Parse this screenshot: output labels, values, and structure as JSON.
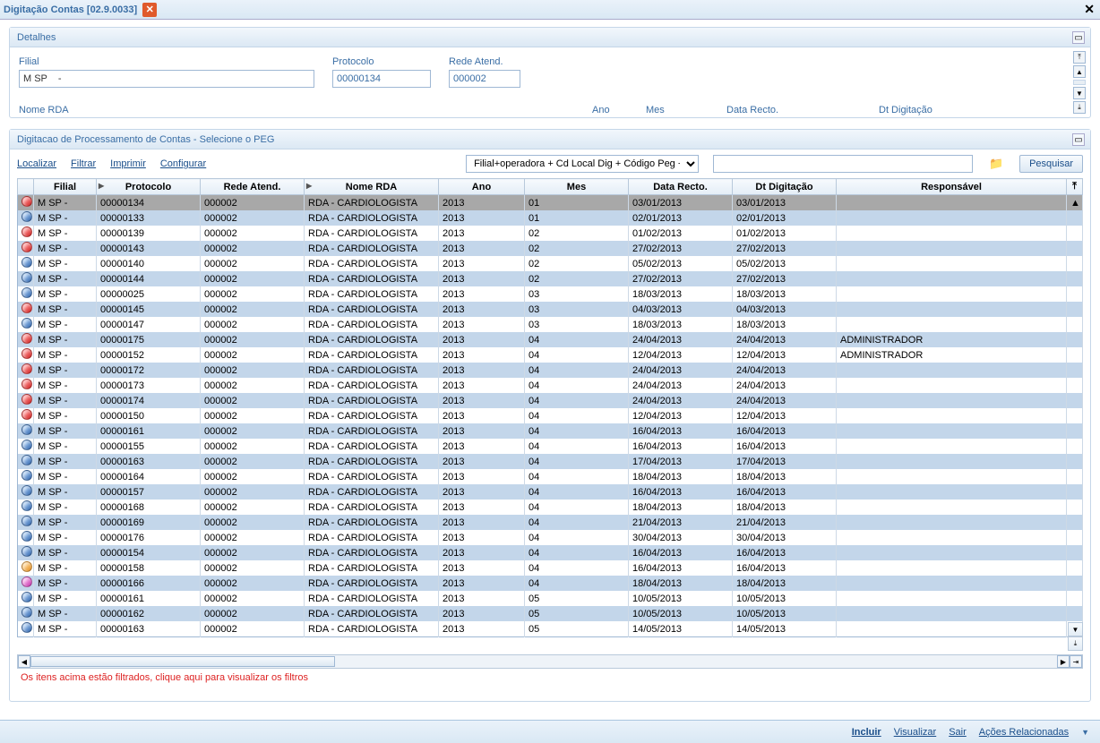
{
  "window": {
    "title": "Digitação Contas [02.9.0033]"
  },
  "panels": {
    "detalhes": {
      "title": "Detalhes"
    },
    "peg": {
      "title": "Digitacao de Processamento de Contas - Selecione o PEG"
    }
  },
  "fields": {
    "filial": {
      "label": "Filial",
      "value": "M SP    -"
    },
    "protocolo": {
      "label": "Protocolo",
      "value": "00000134"
    },
    "rede": {
      "label": "Rede Atend.",
      "value": "000002"
    },
    "truncated": {
      "nomerda": "Nome RDA",
      "ano": "Ano",
      "mes": "Mes",
      "datarecto": "Data Recto.",
      "dtdig": "Dt Digitação"
    }
  },
  "toolbar": {
    "localizar": "Localizar",
    "filtrar": "Filtrar",
    "imprimir": "Imprimir",
    "configurar": "Configurar",
    "combo_value": "Filial+operadora + Cd Local Dig + Código Peg + Fa",
    "search_label": "Pesquisar"
  },
  "columns": {
    "filial": "Filial",
    "protocolo": "Protocolo",
    "rede": "Rede Atend.",
    "nome": "Nome RDA",
    "ano": "Ano",
    "mes": "Mes",
    "datarecto": "Data Recto.",
    "dtdig": "Dt Digitação",
    "resp": "Responsável"
  },
  "status_colors": {
    "red": "#cc1f1f",
    "blue": "#2b5fa8",
    "orange": "#e08a1f",
    "magenta": "#c22fa8"
  },
  "rows": [
    {
      "status": "red",
      "filial": "M SP    -",
      "protocolo": "00000134",
      "rede": "000002",
      "nome": "RDA - CARDIOLOGISTA",
      "ano": "2013",
      "mes": "01",
      "datarecto": "03/01/2013",
      "dtdig": "03/01/2013",
      "resp": "",
      "sel": true,
      "alt": true
    },
    {
      "status": "blue",
      "filial": "M SP    -",
      "protocolo": "00000133",
      "rede": "000002",
      "nome": "RDA - CARDIOLOGISTA",
      "ano": "2013",
      "mes": "01",
      "datarecto": "02/01/2013",
      "dtdig": "02/01/2013",
      "resp": "",
      "alt": true
    },
    {
      "status": "red",
      "filial": "M SP    -",
      "protocolo": "00000139",
      "rede": "000002",
      "nome": "RDA - CARDIOLOGISTA",
      "ano": "2013",
      "mes": "02",
      "datarecto": "01/02/2013",
      "dtdig": "01/02/2013",
      "resp": ""
    },
    {
      "status": "red",
      "filial": "M SP    -",
      "protocolo": "00000143",
      "rede": "000002",
      "nome": "RDA - CARDIOLOGISTA",
      "ano": "2013",
      "mes": "02",
      "datarecto": "27/02/2013",
      "dtdig": "27/02/2013",
      "resp": "",
      "alt": true
    },
    {
      "status": "blue",
      "filial": "M SP    -",
      "protocolo": "00000140",
      "rede": "000002",
      "nome": "RDA - CARDIOLOGISTA",
      "ano": "2013",
      "mes": "02",
      "datarecto": "05/02/2013",
      "dtdig": "05/02/2013",
      "resp": ""
    },
    {
      "status": "blue",
      "filial": "M SP    -",
      "protocolo": "00000144",
      "rede": "000002",
      "nome": "RDA - CARDIOLOGISTA",
      "ano": "2013",
      "mes": "02",
      "datarecto": "27/02/2013",
      "dtdig": "27/02/2013",
      "resp": "",
      "alt": true
    },
    {
      "status": "blue",
      "filial": "M SP    -",
      "protocolo": "00000025",
      "rede": "000002",
      "nome": "RDA - CARDIOLOGISTA",
      "ano": "2013",
      "mes": "03",
      "datarecto": "18/03/2013",
      "dtdig": "18/03/2013",
      "resp": ""
    },
    {
      "status": "red",
      "filial": "M SP    -",
      "protocolo": "00000145",
      "rede": "000002",
      "nome": "RDA - CARDIOLOGISTA",
      "ano": "2013",
      "mes": "03",
      "datarecto": "04/03/2013",
      "dtdig": "04/03/2013",
      "resp": "",
      "alt": true
    },
    {
      "status": "blue",
      "filial": "M SP    -",
      "protocolo": "00000147",
      "rede": "000002",
      "nome": "RDA - CARDIOLOGISTA",
      "ano": "2013",
      "mes": "03",
      "datarecto": "18/03/2013",
      "dtdig": "18/03/2013",
      "resp": ""
    },
    {
      "status": "red",
      "filial": "M SP    -",
      "protocolo": "00000175",
      "rede": "000002",
      "nome": "RDA - CARDIOLOGISTA",
      "ano": "2013",
      "mes": "04",
      "datarecto": "24/04/2013",
      "dtdig": "24/04/2013",
      "resp": "ADMINISTRADOR",
      "alt": true
    },
    {
      "status": "red",
      "filial": "M SP    -",
      "protocolo": "00000152",
      "rede": "000002",
      "nome": "RDA - CARDIOLOGISTA",
      "ano": "2013",
      "mes": "04",
      "datarecto": "12/04/2013",
      "dtdig": "12/04/2013",
      "resp": "ADMINISTRADOR"
    },
    {
      "status": "red",
      "filial": "M SP    -",
      "protocolo": "00000172",
      "rede": "000002",
      "nome": "RDA - CARDIOLOGISTA",
      "ano": "2013",
      "mes": "04",
      "datarecto": "24/04/2013",
      "dtdig": "24/04/2013",
      "resp": "",
      "alt": true
    },
    {
      "status": "red",
      "filial": "M SP    -",
      "protocolo": "00000173",
      "rede": "000002",
      "nome": "RDA - CARDIOLOGISTA",
      "ano": "2013",
      "mes": "04",
      "datarecto": "24/04/2013",
      "dtdig": "24/04/2013",
      "resp": ""
    },
    {
      "status": "red",
      "filial": "M SP    -",
      "protocolo": "00000174",
      "rede": "000002",
      "nome": "RDA - CARDIOLOGISTA",
      "ano": "2013",
      "mes": "04",
      "datarecto": "24/04/2013",
      "dtdig": "24/04/2013",
      "resp": "",
      "alt": true
    },
    {
      "status": "red",
      "filial": "M SP    -",
      "protocolo": "00000150",
      "rede": "000002",
      "nome": "RDA - CARDIOLOGISTA",
      "ano": "2013",
      "mes": "04",
      "datarecto": "12/04/2013",
      "dtdig": "12/04/2013",
      "resp": ""
    },
    {
      "status": "blue",
      "filial": "M SP    -",
      "protocolo": "00000161",
      "rede": "000002",
      "nome": "RDA - CARDIOLOGISTA",
      "ano": "2013",
      "mes": "04",
      "datarecto": "16/04/2013",
      "dtdig": "16/04/2013",
      "resp": "",
      "alt": true
    },
    {
      "status": "blue",
      "filial": "M SP    -",
      "protocolo": "00000155",
      "rede": "000002",
      "nome": "RDA - CARDIOLOGISTA",
      "ano": "2013",
      "mes": "04",
      "datarecto": "16/04/2013",
      "dtdig": "16/04/2013",
      "resp": ""
    },
    {
      "status": "blue",
      "filial": "M SP    -",
      "protocolo": "00000163",
      "rede": "000002",
      "nome": "RDA - CARDIOLOGISTA",
      "ano": "2013",
      "mes": "04",
      "datarecto": "17/04/2013",
      "dtdig": "17/04/2013",
      "resp": "",
      "alt": true
    },
    {
      "status": "blue",
      "filial": "M SP    -",
      "protocolo": "00000164",
      "rede": "000002",
      "nome": "RDA - CARDIOLOGISTA",
      "ano": "2013",
      "mes": "04",
      "datarecto": "18/04/2013",
      "dtdig": "18/04/2013",
      "resp": ""
    },
    {
      "status": "blue",
      "filial": "M SP    -",
      "protocolo": "00000157",
      "rede": "000002",
      "nome": "RDA - CARDIOLOGISTA",
      "ano": "2013",
      "mes": "04",
      "datarecto": "16/04/2013",
      "dtdig": "16/04/2013",
      "resp": "",
      "alt": true
    },
    {
      "status": "blue",
      "filial": "M SP    -",
      "protocolo": "00000168",
      "rede": "000002",
      "nome": "RDA - CARDIOLOGISTA",
      "ano": "2013",
      "mes": "04",
      "datarecto": "18/04/2013",
      "dtdig": "18/04/2013",
      "resp": ""
    },
    {
      "status": "blue",
      "filial": "M SP    -",
      "protocolo": "00000169",
      "rede": "000002",
      "nome": "RDA - CARDIOLOGISTA",
      "ano": "2013",
      "mes": "04",
      "datarecto": "21/04/2013",
      "dtdig": "21/04/2013",
      "resp": "",
      "alt": true
    },
    {
      "status": "blue",
      "filial": "M SP    -",
      "protocolo": "00000176",
      "rede": "000002",
      "nome": "RDA - CARDIOLOGISTA",
      "ano": "2013",
      "mes": "04",
      "datarecto": "30/04/2013",
      "dtdig": "30/04/2013",
      "resp": ""
    },
    {
      "status": "blue",
      "filial": "M SP    -",
      "protocolo": "00000154",
      "rede": "000002",
      "nome": "RDA - CARDIOLOGISTA",
      "ano": "2013",
      "mes": "04",
      "datarecto": "16/04/2013",
      "dtdig": "16/04/2013",
      "resp": "",
      "alt": true
    },
    {
      "status": "orange",
      "filial": "M SP    -",
      "protocolo": "00000158",
      "rede": "000002",
      "nome": "RDA - CARDIOLOGISTA",
      "ano": "2013",
      "mes": "04",
      "datarecto": "16/04/2013",
      "dtdig": "16/04/2013",
      "resp": ""
    },
    {
      "status": "magenta",
      "filial": "M SP    -",
      "protocolo": "00000166",
      "rede": "000002",
      "nome": "RDA - CARDIOLOGISTA",
      "ano": "2013",
      "mes": "04",
      "datarecto": "18/04/2013",
      "dtdig": "18/04/2013",
      "resp": "",
      "alt": true
    },
    {
      "status": "blue",
      "filial": "M SP    -",
      "protocolo": "00000161",
      "rede": "000002",
      "nome": "RDA - CARDIOLOGISTA",
      "ano": "2013",
      "mes": "05",
      "datarecto": "10/05/2013",
      "dtdig": "10/05/2013",
      "resp": ""
    },
    {
      "status": "blue",
      "filial": "M SP    -",
      "protocolo": "00000162",
      "rede": "000002",
      "nome": "RDA - CARDIOLOGISTA",
      "ano": "2013",
      "mes": "05",
      "datarecto": "10/05/2013",
      "dtdig": "10/05/2013",
      "resp": "",
      "alt": true
    },
    {
      "status": "blue",
      "filial": "M SP    -",
      "protocolo": "00000163",
      "rede": "000002",
      "nome": "RDA - CARDIOLOGISTA",
      "ano": "2013",
      "mes": "05",
      "datarecto": "14/05/2013",
      "dtdig": "14/05/2013",
      "resp": ""
    }
  ],
  "filter_msg": "Os itens acima estão filtrados, clique aqui para visualizar os filtros",
  "footer": {
    "incluir": "Incluir",
    "visualizar": "Visualizar",
    "sair": "Sair",
    "acoes": "Ações Relacionadas"
  }
}
